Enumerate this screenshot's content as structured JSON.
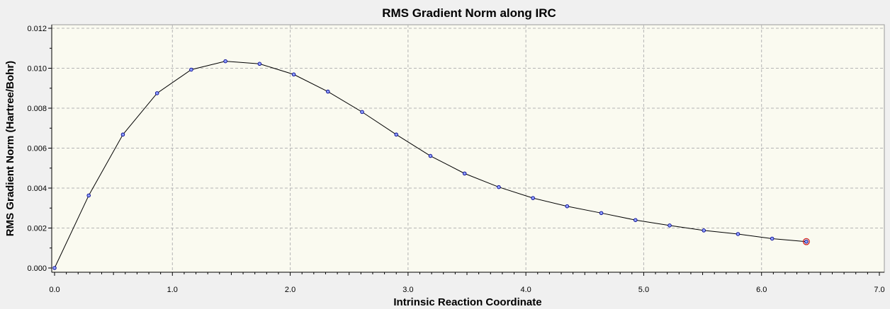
{
  "chart_data": {
    "type": "line",
    "title": "RMS Gradient Norm along IRC",
    "xlabel": "Intrinsic Reaction Coordinate",
    "ylabel": "RMS Gradient Norm (Hartree/Bohr)",
    "xlim": [
      0.0,
      7.0
    ],
    "ylim": [
      0.0,
      0.012
    ],
    "x_ticks": [
      "0.0",
      "1.0",
      "2.0",
      "3.0",
      "4.0",
      "5.0",
      "6.0",
      "7.0"
    ],
    "y_ticks": [
      "0.000",
      "0.002",
      "0.004",
      "0.006",
      "0.008",
      "0.010",
      "0.012"
    ],
    "grid": true,
    "legend": "none",
    "colors": {
      "plot_background": "#fafaf0",
      "line": "#000000",
      "marker_fill": "#8fa0ff",
      "marker_stroke": "#00008b",
      "highlight_marker": "#d02020",
      "grid": "#b4b4b4"
    },
    "series": [
      {
        "x": [
          0.0,
          0.29,
          0.58,
          0.87,
          1.16,
          1.45,
          1.74,
          2.03,
          2.32,
          2.61,
          2.9,
          3.19,
          3.48,
          3.77,
          4.06,
          4.35,
          4.64,
          4.93,
          5.22,
          5.51,
          5.8,
          6.09,
          6.38
        ],
        "y": [
          0.0,
          0.00363,
          0.00668,
          0.00875,
          0.00993,
          0.01035,
          0.01022,
          0.00969,
          0.00883,
          0.00781,
          0.00668,
          0.00561,
          0.00473,
          0.00405,
          0.0035,
          0.00309,
          0.00275,
          0.0024,
          0.00213,
          0.00188,
          0.0017,
          0.00147,
          0.00132
        ]
      }
    ],
    "highlighted_point_index": 22
  }
}
